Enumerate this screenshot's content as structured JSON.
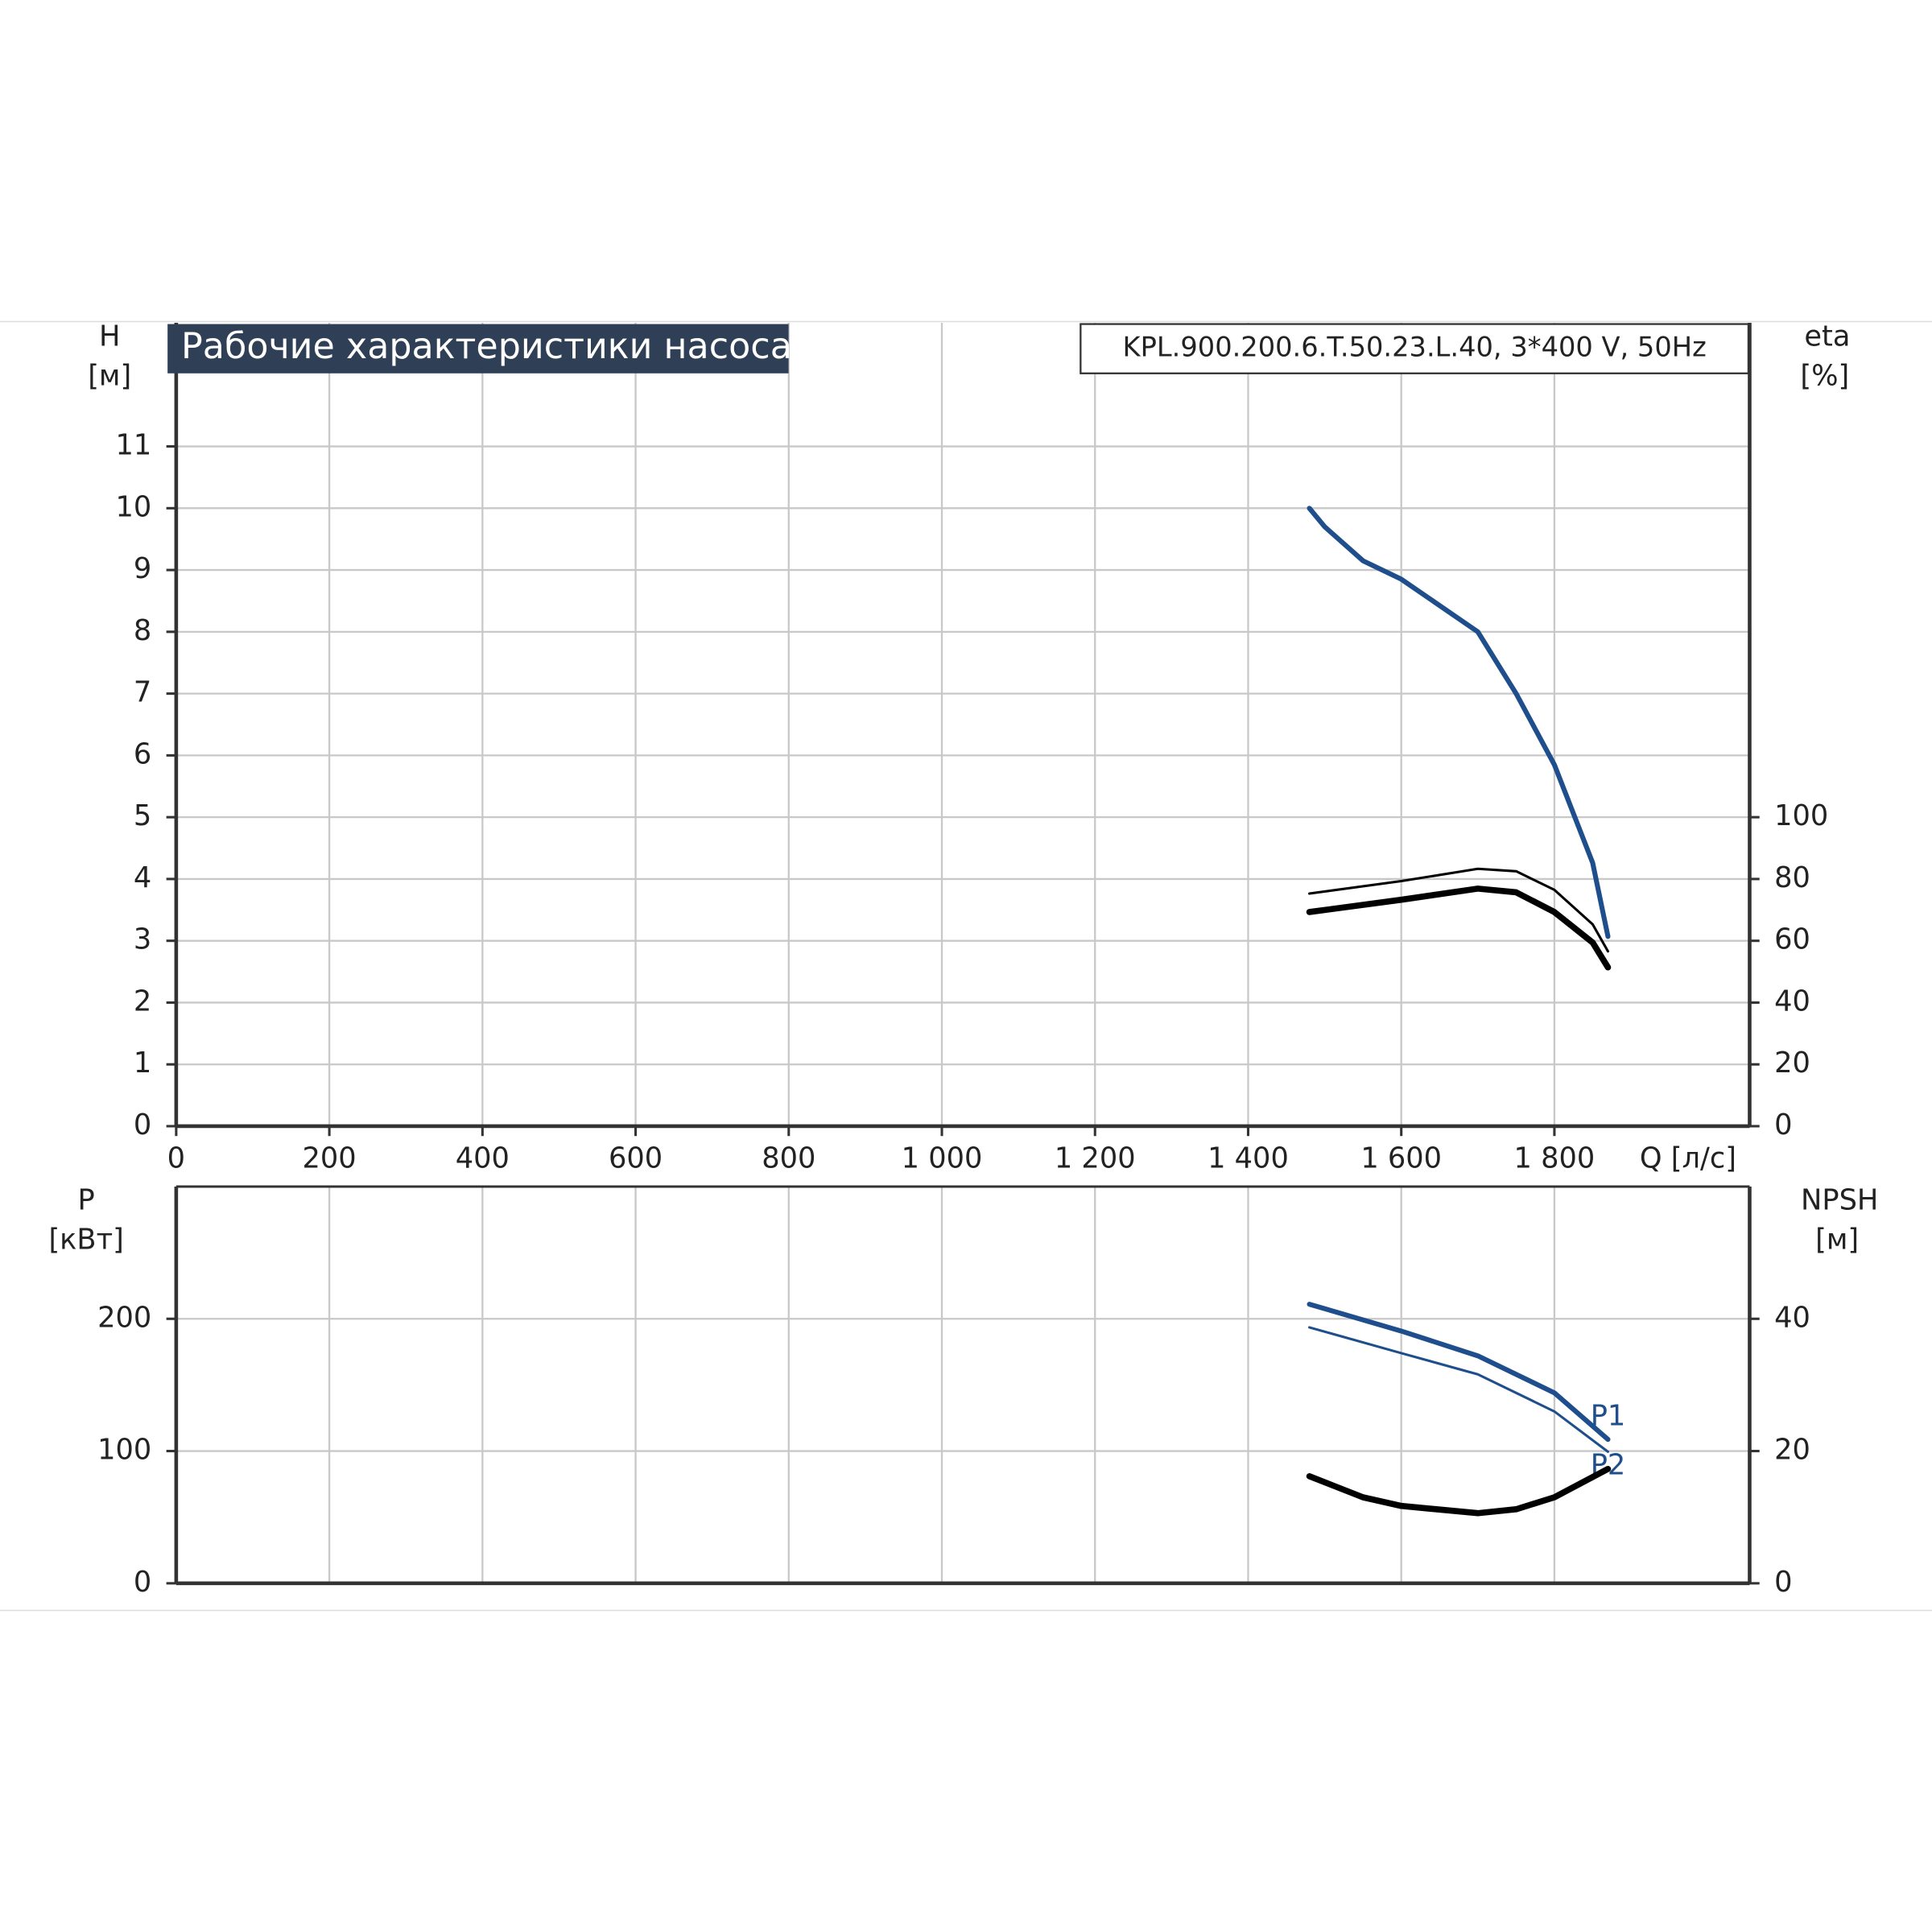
{
  "chart_data": [
    {
      "type": "line",
      "title": "Рабочие характеристики насоса",
      "subtitle": "KPL.900.200.6.T.50.23.L.40, 3*400 V, 50Hz",
      "ylabel": "H",
      "yunit": "[м]",
      "y2label": "eta",
      "y2unit": "[%]",
      "xlabel": "Q [л/с]",
      "xlim": [
        0,
        2055
      ],
      "xticks": [
        0,
        200,
        400,
        600,
        800,
        {
          "value": 1000,
          "label": "1 000"
        },
        {
          "value": 1200,
          "label": "1 200"
        },
        {
          "value": 1400,
          "label": "1 400"
        },
        {
          "value": 1600,
          "label": "1 600"
        },
        {
          "value": 1800,
          "label": "1 800"
        }
      ],
      "ylim": [
        0,
        13
      ],
      "yticks": [
        0,
        1,
        2,
        3,
        4,
        5,
        6,
        7,
        8,
        9,
        10,
        11
      ],
      "y2lim": [
        0,
        260
      ],
      "y2ticks": [
        0,
        20,
        40,
        60,
        80,
        100
      ],
      "grid": true,
      "series": [
        {
          "color": "#1f4e8c",
          "line_width": 4,
          "x": [
            1480,
            1500,
            1550,
            1600,
            1700,
            1750,
            1800,
            1850,
            1870
          ],
          "values": [
            10,
            9.7,
            9.15,
            8.85,
            8.0,
            7.0,
            5.85,
            4.26,
            3.07
          ]
        },
        {
          "color": "#000000",
          "line_width": 2,
          "axis": "y2",
          "x": [
            1480,
            1600,
            1700,
            1750,
            1800,
            1850,
            1870
          ],
          "values": [
            75.3,
            79.3,
            83.3,
            82.5,
            76.5,
            65.3,
            56.6
          ]
        },
        {
          "color": "#000000",
          "line_width": 5,
          "axis": "y2",
          "x": [
            1480,
            1600,
            1700,
            1750,
            1800,
            1850,
            1870
          ],
          "values": [
            69.3,
            73.3,
            76.9,
            75.7,
            69.3,
            59.4,
            51.4
          ]
        }
      ]
    },
    {
      "type": "line",
      "ylabel": "P",
      "yunit": "[кВт]",
      "y2label": "NPSH",
      "y2unit": "[м]",
      "xlim": [
        0,
        2055
      ],
      "xticks": [
        0,
        200,
        400,
        600,
        800,
        1000,
        1200,
        1400,
        1600,
        1800
      ],
      "ylim": [
        0,
        300
      ],
      "yticks": [
        0,
        100,
        200
      ],
      "y2lim": [
        0,
        60
      ],
      "y2ticks": [
        0,
        20,
        40
      ],
      "grid": true,
      "series": [
        {
          "name": "P1",
          "color": "#1f4e8c",
          "line_width": 4,
          "x": [
            1480,
            1600,
            1700,
            1800,
            1870
          ],
          "values": [
            211,
            190.7,
            172,
            144,
            108.8
          ]
        },
        {
          "name": "P2",
          "color": "#1f4e8c",
          "line_width": 2,
          "x": [
            1480,
            1600,
            1700,
            1800,
            1870
          ],
          "values": [
            193.5,
            174,
            158,
            130,
            99.5
          ]
        },
        {
          "color": "#000000",
          "line_width": 5,
          "axis": "y2",
          "x": [
            1480,
            1550,
            1600,
            1700,
            1750,
            1800,
            1870
          ],
          "values": [
            16.2,
            13,
            11.7,
            10.6,
            11.2,
            13,
            17.3
          ]
        }
      ]
    }
  ]
}
